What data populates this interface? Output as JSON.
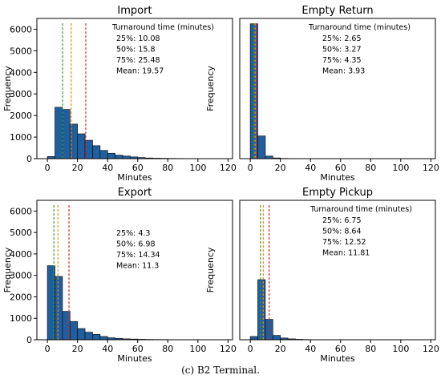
{
  "caption": {
    "label": "(c)",
    "text": "B2 Terminal."
  },
  "colors": {
    "bar_fill": "#1f5f9f",
    "bar_edge": "#111111",
    "q25": "#2ca02c",
    "q50": "#ff7f0e",
    "q75": "#d62728"
  },
  "chart_data": [
    {
      "type": "bar",
      "title": "Import",
      "xlabel": "Minutes",
      "ylabel": "Frequency",
      "xlim": [
        -7,
        123
      ],
      "ylim": [
        0,
        6500
      ],
      "xticks": [
        0,
        20,
        40,
        60,
        80,
        100,
        120
      ],
      "yticks": [
        0,
        1000,
        2000,
        3000,
        4000,
        5000,
        6000
      ],
      "bin_width": 5,
      "bins_start": [
        0,
        5,
        10,
        15,
        20,
        25,
        30,
        35,
        40,
        45,
        50,
        55,
        60,
        65,
        70,
        75,
        80,
        85,
        90,
        95,
        100,
        105,
        110,
        115
      ],
      "values": [
        100,
        2380,
        2280,
        1600,
        1150,
        850,
        600,
        380,
        250,
        160,
        120,
        80,
        50,
        30,
        20,
        15,
        10,
        8,
        5,
        5,
        3,
        2,
        2,
        1
      ],
      "quantiles": {
        "q25": 10.08,
        "q50": 15.8,
        "q75": 25.48
      },
      "stats": {
        "header": "Turnaround time (minutes)",
        "lines": [
          "25%: 10.08",
          "50%: 15.8",
          "75%: 25.48",
          "Mean: 19.57"
        ]
      }
    },
    {
      "type": "bar",
      "title": "Empty Return",
      "xlabel": "Minutes",
      "ylabel": "Frequency",
      "xlim": [
        -7,
        123
      ],
      "ylim": [
        0,
        6500
      ],
      "xticks": [
        0,
        20,
        40,
        60,
        80,
        100,
        120
      ],
      "yticks": [],
      "bin_width": 5,
      "bins_start": [
        0,
        5,
        10,
        15,
        20,
        25
      ],
      "values": [
        6250,
        1050,
        120,
        30,
        10,
        5
      ],
      "quantiles": {
        "q25": 2.65,
        "q50": 3.27,
        "q75": 4.35
      },
      "stats": {
        "header": "Turnaround time (minutes)",
        "lines": [
          "25%: 2.65",
          "50%: 3.27",
          "75%: 4.35",
          "Mean: 3.93"
        ]
      }
    },
    {
      "type": "bar",
      "title": "Export",
      "xlabel": "Minutes",
      "ylabel": "Frequency",
      "xlim": [
        -7,
        123
      ],
      "ylim": [
        0,
        6500
      ],
      "xticks": [
        0,
        20,
        40,
        60,
        80,
        100,
        120
      ],
      "yticks": [
        0,
        1000,
        2000,
        3000,
        4000,
        5000,
        6000
      ],
      "bin_width": 5,
      "bins_start": [
        0,
        5,
        10,
        15,
        20,
        25,
        30,
        35,
        40,
        45,
        50,
        55,
        60,
        65,
        70,
        75,
        80,
        85,
        90
      ],
      "values": [
        3450,
        2950,
        1320,
        850,
        520,
        350,
        250,
        150,
        90,
        60,
        40,
        30,
        20,
        15,
        10,
        8,
        5,
        3,
        2
      ],
      "quantiles": {
        "q25": 4.3,
        "q50": 6.98,
        "q75": 14.34
      },
      "stats": {
        "header": "",
        "lines": [
          "25%: 4.3",
          "50%: 6.98",
          "75%: 14.34",
          "Mean: 11.3"
        ]
      }
    },
    {
      "type": "bar",
      "title": "Empty Pickup",
      "xlabel": "Minutes",
      "ylabel": "Frequency",
      "xlim": [
        -7,
        123
      ],
      "ylim": [
        0,
        6500
      ],
      "xticks": [
        0,
        20,
        40,
        60,
        80,
        100,
        120
      ],
      "yticks": [],
      "bin_width": 5,
      "bins_start": [
        0,
        5,
        10,
        15,
        20,
        25,
        30,
        35,
        40,
        45
      ],
      "values": [
        150,
        2800,
        950,
        200,
        80,
        40,
        20,
        10,
        5,
        3
      ],
      "quantiles": {
        "q25": 6.75,
        "q50": 8.64,
        "q75": 12.52
      },
      "stats": {
        "header": "Turnaround time (minutes)",
        "lines": [
          "25%: 6.75",
          "50%: 8.64",
          "75%: 12.52",
          "Mean: 11.81"
        ]
      }
    }
  ]
}
